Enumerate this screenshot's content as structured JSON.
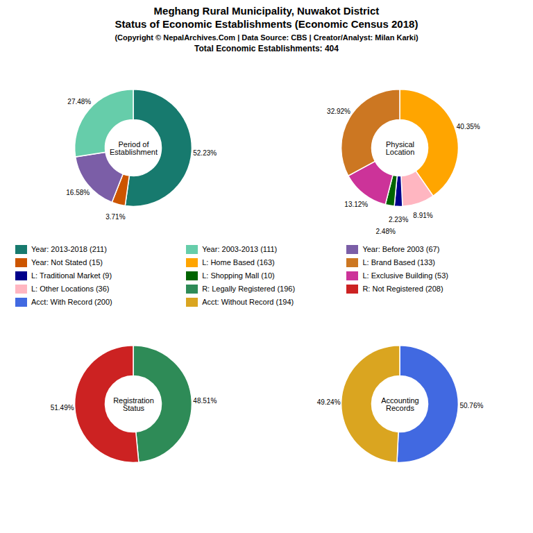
{
  "title": "Meghang Rural Municipality, Nuwakot District\nStatus of Economic Establishments (Economic Census 2018)",
  "subtitle": "(Copyright © NepalArchives.Com | Data Source: CBS | Creator/Analyst: Milan Karki)",
  "annotations": [
    "Total Economic Establishments: 404"
  ],
  "legend_items": [
    {
      "name": "Year: 2013-2018 (211)",
      "color": "#177a6e"
    },
    {
      "name": "Year: 2003-2013 (111)",
      "color": "#66cdaa"
    },
    {
      "name": "Year: Before 2003 (67)",
      "color": "#7b5ea7"
    },
    {
      "name": "Year: Not Stated (15)",
      "color": "#cc5500"
    },
    {
      "name": "L: Home Based (163)",
      "color": "#ffa500"
    },
    {
      "name": "L: Brand Based (133)",
      "color": "#cc7722"
    },
    {
      "name": "L: Traditional Market (9)",
      "color": "#00008b"
    },
    {
      "name": "L: Shopping Mall (10)",
      "color": "#006400"
    },
    {
      "name": "L: Exclusive Building (53)",
      "color": "#cc3399"
    },
    {
      "name": "L: Other Locations (36)",
      "color": "#ffb6c1"
    },
    {
      "name": "R: Legally Registered (196)",
      "color": "#2e8b57"
    },
    {
      "name": "R: Not Registered (208)",
      "color": "#cc2222"
    },
    {
      "name": "Acct: With Record (200)",
      "color": "#4169e1"
    },
    {
      "name": "Acct: Without Record (194)",
      "color": "#daa520"
    }
  ],
  "chart_data": [
    {
      "type": "pie",
      "title": "Period of\nEstablishment",
      "values": [
        52.23,
        3.71,
        16.58,
        27.48
      ],
      "value_labels": [
        "52.23%",
        "3.71%",
        "16.58%",
        "27.48%"
      ],
      "colors": [
        "#177a6e",
        "#cc5500",
        "#7b5ea7",
        "#66cdaa"
      ]
    },
    {
      "type": "pie",
      "title": "Physical\nLocation",
      "values": [
        40.35,
        8.91,
        2.23,
        2.48,
        13.12,
        32.92
      ],
      "value_labels": [
        "40.35%",
        "8.91%",
        "2.23%",
        "2.48%",
        "13.12%",
        "32.92%"
      ],
      "colors": [
        "#ffa500",
        "#ffb6c1",
        "#00008b",
        "#006400",
        "#cc3399",
        "#cc7722"
      ]
    },
    {
      "type": "pie",
      "title": "Registration\nStatus",
      "values": [
        48.51,
        51.49
      ],
      "value_labels": [
        "48.51%",
        "51.49%"
      ],
      "colors": [
        "#2e8b57",
        "#cc2222"
      ]
    },
    {
      "type": "pie",
      "title": "Accounting\nRecords",
      "values": [
        50.76,
        49.24
      ],
      "value_labels": [
        "50.76%",
        "49.24%"
      ],
      "colors": [
        "#4169e1",
        "#daa520"
      ]
    }
  ]
}
